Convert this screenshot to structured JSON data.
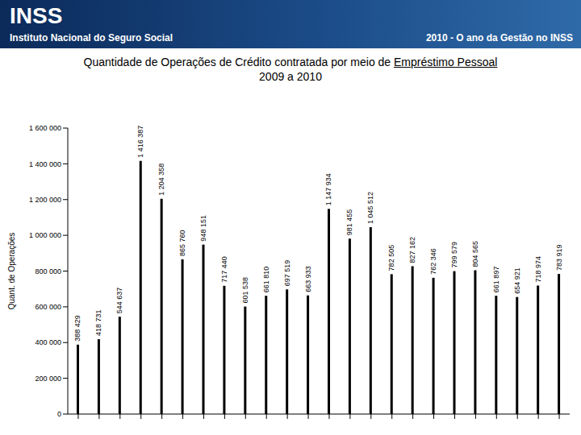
{
  "header": {
    "logo": "INSS",
    "institution": "Instituto Nacional do Seguro Social",
    "slogan": "2010 - O ano da Gestão no INSS"
  },
  "chart_data": {
    "type": "bar",
    "title": "Quantidade de Operações de Crédito contratada por meio de Empréstimo Pessoal",
    "subtitle": "2009 a 2010",
    "y_label": "Quant. de Operações",
    "categories": [
      null,
      null,
      null,
      null,
      null,
      null,
      null,
      null,
      null,
      null,
      null,
      null,
      null,
      null,
      null,
      null,
      null,
      null,
      null,
      null,
      null,
      null,
      null,
      null
    ],
    "values": [
      388429,
      418731,
      544637,
      1416387,
      1204358,
      865760,
      948151,
      717440,
      601538,
      661810,
      697519,
      663933,
      1147934,
      981455,
      1045512,
      782505,
      827162,
      762346,
      799579,
      804565,
      661897,
      654921,
      718974,
      783919
    ],
    "value_labels": [
      "388 429",
      "418 731",
      "544 637",
      "1 416 387",
      "1 204 358",
      "865 760",
      "948 151",
      "717 440",
      "601 538",
      "661 810",
      "697 519",
      "663 933",
      "1 147 934",
      "981 455",
      "1 045 512",
      "782 505",
      "827 162",
      "762 346",
      "799 579",
      "804 565",
      "661 897",
      "654 921",
      "718 974",
      "783 919"
    ],
    "color": "#000000",
    "ylim": [
      0,
      1600000
    ],
    "yticks": [
      0,
      {
        "value": 200000,
        "label": "200 000"
      },
      {
        "value": 400000,
        "label": "400 000"
      },
      {
        "value": 600000,
        "label": "600 000"
      },
      {
        "value": 800000,
        "label": "800 000"
      },
      {
        "value": 1000000,
        "label": "1 000 000"
      },
      {
        "value": 1200000,
        "label": "1 200 000"
      },
      {
        "value": 1400000,
        "label": "1 400 000"
      },
      {
        "value": 1600000,
        "label": "1 600 000"
      }
    ],
    "grid": false,
    "data_labels": true
  }
}
